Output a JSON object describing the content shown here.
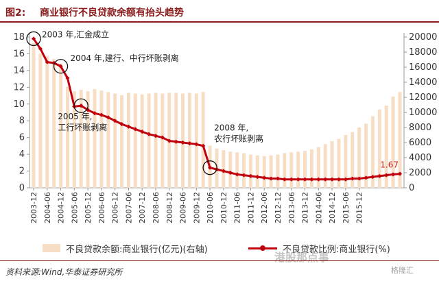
{
  "header": {
    "figure_no": "图2:",
    "title": "商业银行不良贷款余额有抬头趋势"
  },
  "source": "资料来源:Wind,华泰证券研究所",
  "watermarks": {
    "left": "港股那点事",
    "right": "格隆汇"
  },
  "colors": {
    "bar": "#f7ddc4",
    "line": "#c0000c",
    "accent": "#8b1a1a",
    "end_label": "#d01b1b"
  },
  "chart_data": {
    "type": "bar+line",
    "title": "商业银行不良贷款余额有抬头趋势",
    "grid": false,
    "legend_position": "bottom",
    "left_axis": {
      "min": 0,
      "max": 18,
      "ticks": [
        0,
        2,
        4,
        6,
        8,
        10,
        12,
        14,
        16,
        18
      ]
    },
    "right_axis": {
      "min": 0,
      "max": 20000,
      "ticks": [
        0,
        2000,
        4000,
        6000,
        8000,
        10000,
        12000,
        14000,
        16000,
        18000,
        20000
      ]
    },
    "x_tick_labels": [
      "2003-12",
      "2004-06",
      "2004-12",
      "2005-06",
      "2005-12",
      "2006-06",
      "2006-12",
      "2007-06",
      "2007-12",
      "2008-06",
      "2008-12",
      "2009-06",
      "2009-12",
      "2010-06",
      "2010-12",
      "2011-06",
      "2011-12",
      "2012-06",
      "2012-12",
      "2013-06",
      "2013-12",
      "2014-06",
      "2014-12",
      "2015-06",
      "2015-12"
    ],
    "x_tick_interval_quarters": 2,
    "series": [
      {
        "name": "不良贷款余额:商业银行(亿元)(右轴)",
        "type": "bar",
        "axis": "right",
        "values": [
          19200,
          17800,
          17500,
          17100,
          16500,
          13400,
          12800,
          13000,
          12800,
          13100,
          12900,
          12700,
          12500,
          12300,
          12600,
          12500,
          12400,
          12500,
          12600,
          12500,
          12600,
          12600,
          12500,
          12600,
          12500,
          12700,
          5600,
          5200,
          5000,
          4800,
          4700,
          4600,
          4400,
          4300,
          4200,
          4300,
          4400,
          4600,
          4700,
          4800,
          4900,
          5100,
          5400,
          5800,
          6200,
          6500,
          7000,
          7400,
          8000,
          8500,
          9500,
          10400,
          10900,
          12100,
          12700
        ]
      },
      {
        "name": "不良贷款比例:商业银行(%)",
        "type": "line",
        "axis": "left",
        "values": [
          17.8,
          16.6,
          15.0,
          14.9,
          14.5,
          13.1,
          9.7,
          9.8,
          9.3,
          8.9,
          8.7,
          8.4,
          8.0,
          7.6,
          7.3,
          7.0,
          6.7,
          6.4,
          6.2,
          6.0,
          5.6,
          5.5,
          5.4,
          5.3,
          5.2,
          5.0,
          2.4,
          2.2,
          2.0,
          1.8,
          1.6,
          1.5,
          1.4,
          1.3,
          1.2,
          1.1,
          1.1,
          1.0,
          1.0,
          1.0,
          1.0,
          1.0,
          1.0,
          1.0,
          1.0,
          1.0,
          1.0,
          1.1,
          1.1,
          1.2,
          1.3,
          1.4,
          1.5,
          1.6,
          1.67
        ],
        "end_label": "1.67"
      }
    ],
    "annotations": [
      {
        "lines": [
          "2003 年,汇金成立"
        ],
        "point_index": 0
      },
      {
        "lines": [
          "2004 年,建行、中行坏账剥离"
        ],
        "point_index": 4
      },
      {
        "lines": [
          "2005 年,",
          "工行坏账剥离"
        ],
        "point_index": 7
      },
      {
        "lines": [
          "2008 年,",
          "农行坏账剥离"
        ],
        "point_index": 26
      }
    ]
  }
}
